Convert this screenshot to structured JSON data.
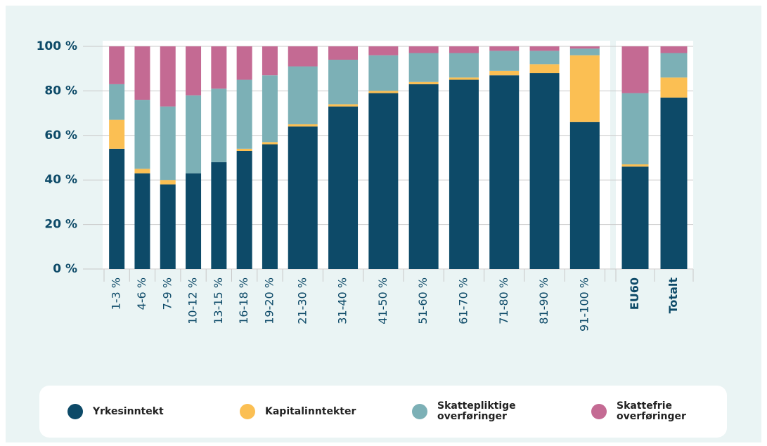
{
  "chart_data": {
    "type": "stacked_bar",
    "categories": [
      "1-3 %",
      "4-6 %",
      "7-9 %",
      "10-12 %",
      "13-15 %",
      "16-18 %",
      "19-20 %",
      "21-30 %",
      "31-40 %",
      "41-50 %",
      "51-60 %",
      "61-70 %",
      "71-80 %",
      "81-90 %",
      "91-100 %",
      "EU60",
      "Totalt"
    ],
    "series": [
      {
        "name": "Yrkesinntekt",
        "color": "#0d4a68",
        "values": [
          54,
          43,
          38,
          43,
          48,
          53,
          56,
          64,
          73,
          79,
          83,
          85,
          87,
          88,
          66,
          46,
          77
        ]
      },
      {
        "name": "Kapitalinntekter",
        "color": "#fbbf53",
        "values": [
          13,
          2,
          2,
          0,
          0,
          1,
          1,
          1,
          1,
          1,
          1,
          1,
          2,
          4,
          30,
          1,
          9
        ]
      },
      {
        "name": "Skattepliktige overføringer",
        "color": "#7cb0b6",
        "values": [
          16,
          31,
          33,
          35,
          33,
          31,
          30,
          26,
          20,
          16,
          13,
          11,
          9,
          6,
          3,
          32,
          11
        ]
      },
      {
        "name": "Skattefrie overføringer",
        "color": "#c46a93",
        "values": [
          17,
          24,
          27,
          22,
          19,
          15,
          13,
          9,
          6,
          4,
          3,
          3,
          2,
          2,
          1,
          21,
          3
        ]
      }
    ],
    "ylim": [
      0,
      100
    ],
    "yticks": [
      {
        "value": 0,
        "label": "0 %"
      },
      {
        "value": 20,
        "label": "20 %"
      },
      {
        "value": 40,
        "label": "40 %"
      },
      {
        "value": 60,
        "label": "60 %"
      },
      {
        "value": 80,
        "label": "80 %"
      },
      {
        "value": 100,
        "label": "100 %"
      }
    ],
    "grid": true
  }
}
